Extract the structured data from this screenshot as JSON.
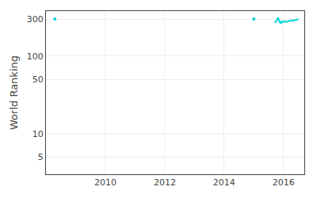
{
  "chart_data": {
    "type": "line",
    "ylabel": "World Ranking",
    "log": "y",
    "grid": true,
    "xlim": [
      2008.0,
      2016.7
    ],
    "ylim": [
      3,
      380
    ],
    "xticks": [
      2010,
      2012,
      2014,
      2016
    ],
    "yticks": [
      5,
      10,
      50,
      100,
      300
    ],
    "series": [
      {
        "type": "scatter",
        "color": "#00d4d4",
        "x": [
          2008.3,
          2015.0
        ],
        "values": [
          300,
          300
        ]
      },
      {
        "type": "line",
        "color": "#00d4d4",
        "x": [
          2015.7,
          2015.75,
          2015.78,
          2015.82,
          2015.86,
          2015.9,
          2015.93,
          2015.97,
          2016.0,
          2016.05,
          2016.1,
          2016.15,
          2016.2,
          2016.25,
          2016.3,
          2016.35,
          2016.4,
          2016.45,
          2016.5
        ],
        "values": [
          268,
          280,
          295,
          315,
          275,
          265,
          280,
          272,
          278,
          282,
          275,
          280,
          285,
          288,
          285,
          290,
          292,
          295,
          298
        ]
      }
    ]
  }
}
